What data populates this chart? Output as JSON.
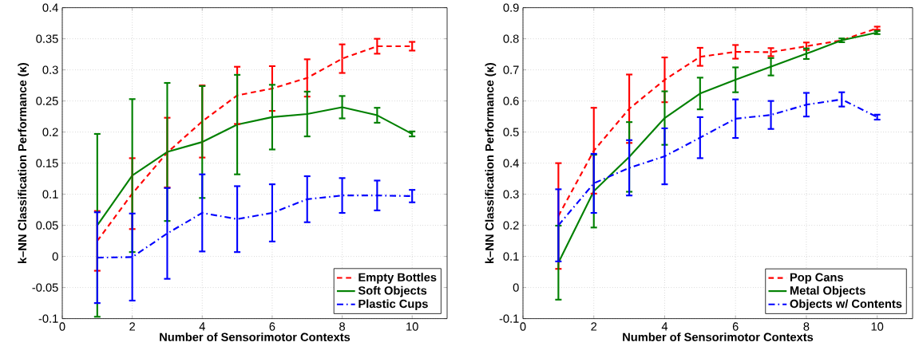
{
  "chart_data": [
    {
      "type": "line",
      "xlabel": "Number of Sensorimotor Contexts",
      "ylabel": "k–NN Classification Performance (κ)",
      "x": [
        1,
        2,
        3,
        4,
        5,
        6,
        7,
        8,
        9,
        10
      ],
      "xlim": [
        0,
        11
      ],
      "xticks": [
        0,
        2,
        4,
        6,
        8,
        10
      ],
      "ylim": [
        -0.1,
        0.4
      ],
      "yticks": [
        -0.1,
        -0.05,
        0,
        0.05,
        0.1,
        0.15,
        0.2,
        0.25,
        0.3,
        0.35,
        0.4
      ],
      "grid": true,
      "legend": "bottom right",
      "marker": "none",
      "series": [
        {
          "name": "Empty Bottles",
          "color": "#ff0000",
          "line_style": "dashed",
          "values": [
            0.025,
            0.101,
            0.167,
            0.217,
            0.259,
            0.27,
            0.287,
            0.318,
            0.338,
            0.338
          ],
          "errors": [
            0.048,
            0.057,
            0.056,
            0.058,
            0.046,
            0.036,
            0.03,
            0.023,
            0.012,
            0.007
          ]
        },
        {
          "name": "Soft Objects",
          "color": "#008000",
          "line_style": "solid",
          "values": [
            0.05,
            0.13,
            0.168,
            0.184,
            0.212,
            0.224,
            0.229,
            0.24,
            0.227,
            0.197
          ],
          "errors": [
            0.147,
            0.123,
            0.111,
            0.09,
            0.08,
            0.052,
            0.036,
            0.018,
            0.012,
            0.004
          ]
        },
        {
          "name": "Plastic Cups",
          "color": "#0000ff",
          "line_style": "dashdot",
          "values": [
            -0.002,
            -0.001,
            0.037,
            0.07,
            0.06,
            0.07,
            0.092,
            0.098,
            0.098,
            0.097
          ],
          "errors": [
            0.073,
            0.07,
            0.073,
            0.062,
            0.053,
            0.046,
            0.037,
            0.028,
            0.024,
            0.01
          ]
        }
      ]
    },
    {
      "type": "line",
      "xlabel": "Number of Sensorimotor Contexts",
      "ylabel": "k–NN Classification Performance (κ)",
      "x": [
        1,
        2,
        3,
        4,
        5,
        6,
        7,
        8,
        9,
        10
      ],
      "xlim": [
        0,
        11
      ],
      "xticks": [
        0,
        2,
        4,
        6,
        8,
        10
      ],
      "ylim": [
        -0.1,
        0.9
      ],
      "yticks": [
        -0.1,
        0,
        0.1,
        0.2,
        0.3,
        0.4,
        0.5,
        0.6,
        0.7,
        0.8,
        0.9
      ],
      "grid": true,
      "legend": "bottom right",
      "marker": "none",
      "series": [
        {
          "name": "Pop Cans",
          "color": "#ff0000",
          "line_style": "dashed",
          "values": [
            0.23,
            0.44,
            0.575,
            0.668,
            0.742,
            0.758,
            0.757,
            0.776,
            0.795,
            0.834
          ],
          "errors": [
            0.17,
            0.138,
            0.11,
            0.072,
            0.029,
            0.022,
            0.013,
            0.012,
            null,
            0.005
          ]
        },
        {
          "name": "Metal Objects",
          "color": "#008000",
          "line_style": "solid",
          "values": [
            0.08,
            0.31,
            0.42,
            0.545,
            0.624,
            0.668,
            0.71,
            0.752,
            0.795,
            0.82
          ],
          "errors": [
            0.119,
            0.117,
            0.112,
            0.086,
            0.051,
            0.04,
            0.028,
            0.017,
            0.006,
            0.005
          ]
        },
        {
          "name": "Objects w/ Contents",
          "color": "#0000ff",
          "line_style": "dashdot",
          "values": [
            0.2,
            0.335,
            0.385,
            0.422,
            0.482,
            0.543,
            0.555,
            0.588,
            0.605,
            0.548
          ],
          "errors": [
            0.116,
            0.095,
            0.089,
            0.09,
            0.066,
            0.062,
            0.045,
            0.038,
            0.023,
            0.008
          ]
        }
      ]
    }
  ]
}
